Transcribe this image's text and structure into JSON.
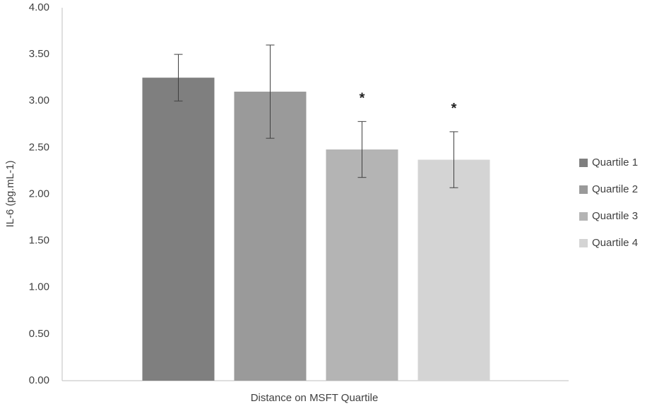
{
  "chart_data": {
    "type": "bar",
    "x_label": "Distance on MSFT Quartile",
    "y_label": "IL-6 (pg.mL-1)",
    "categories": [
      null
    ],
    "series": [
      {
        "name": "Quartile 1",
        "color": "#7f7f7f",
        "values": [
          3.25
        ],
        "errors": [
          0.25
        ]
      },
      {
        "name": "Quartile 2",
        "color": "#9a9a9a",
        "values": [
          3.1
        ],
        "errors": [
          0.5
        ]
      },
      {
        "name": "Quartile 3",
        "color": "#b4b4b4",
        "values": [
          2.48
        ],
        "errors": [
          0.3
        ],
        "annotation": "*"
      },
      {
        "name": "Quartile 4",
        "color": "#d4d4d4",
        "values": [
          2.37
        ],
        "errors": [
          0.3
        ],
        "annotation": "*"
      }
    ],
    "ylim": [
      0,
      4
    ],
    "yticks": [
      {
        "value": 0,
        "label": "0.00"
      },
      {
        "value": 0.5,
        "label": "0.50"
      },
      {
        "value": 1,
        "label": "1.00"
      },
      {
        "value": 1.5,
        "label": "1.50"
      },
      {
        "value": 2,
        "label": "2.00"
      },
      {
        "value": 2.5,
        "label": "2.50"
      },
      {
        "value": 3,
        "label": "3.00"
      },
      {
        "value": 3.5,
        "label": "3.50"
      },
      {
        "value": 4,
        "label": "4.00"
      }
    ],
    "grid": false,
    "legend": "right"
  }
}
